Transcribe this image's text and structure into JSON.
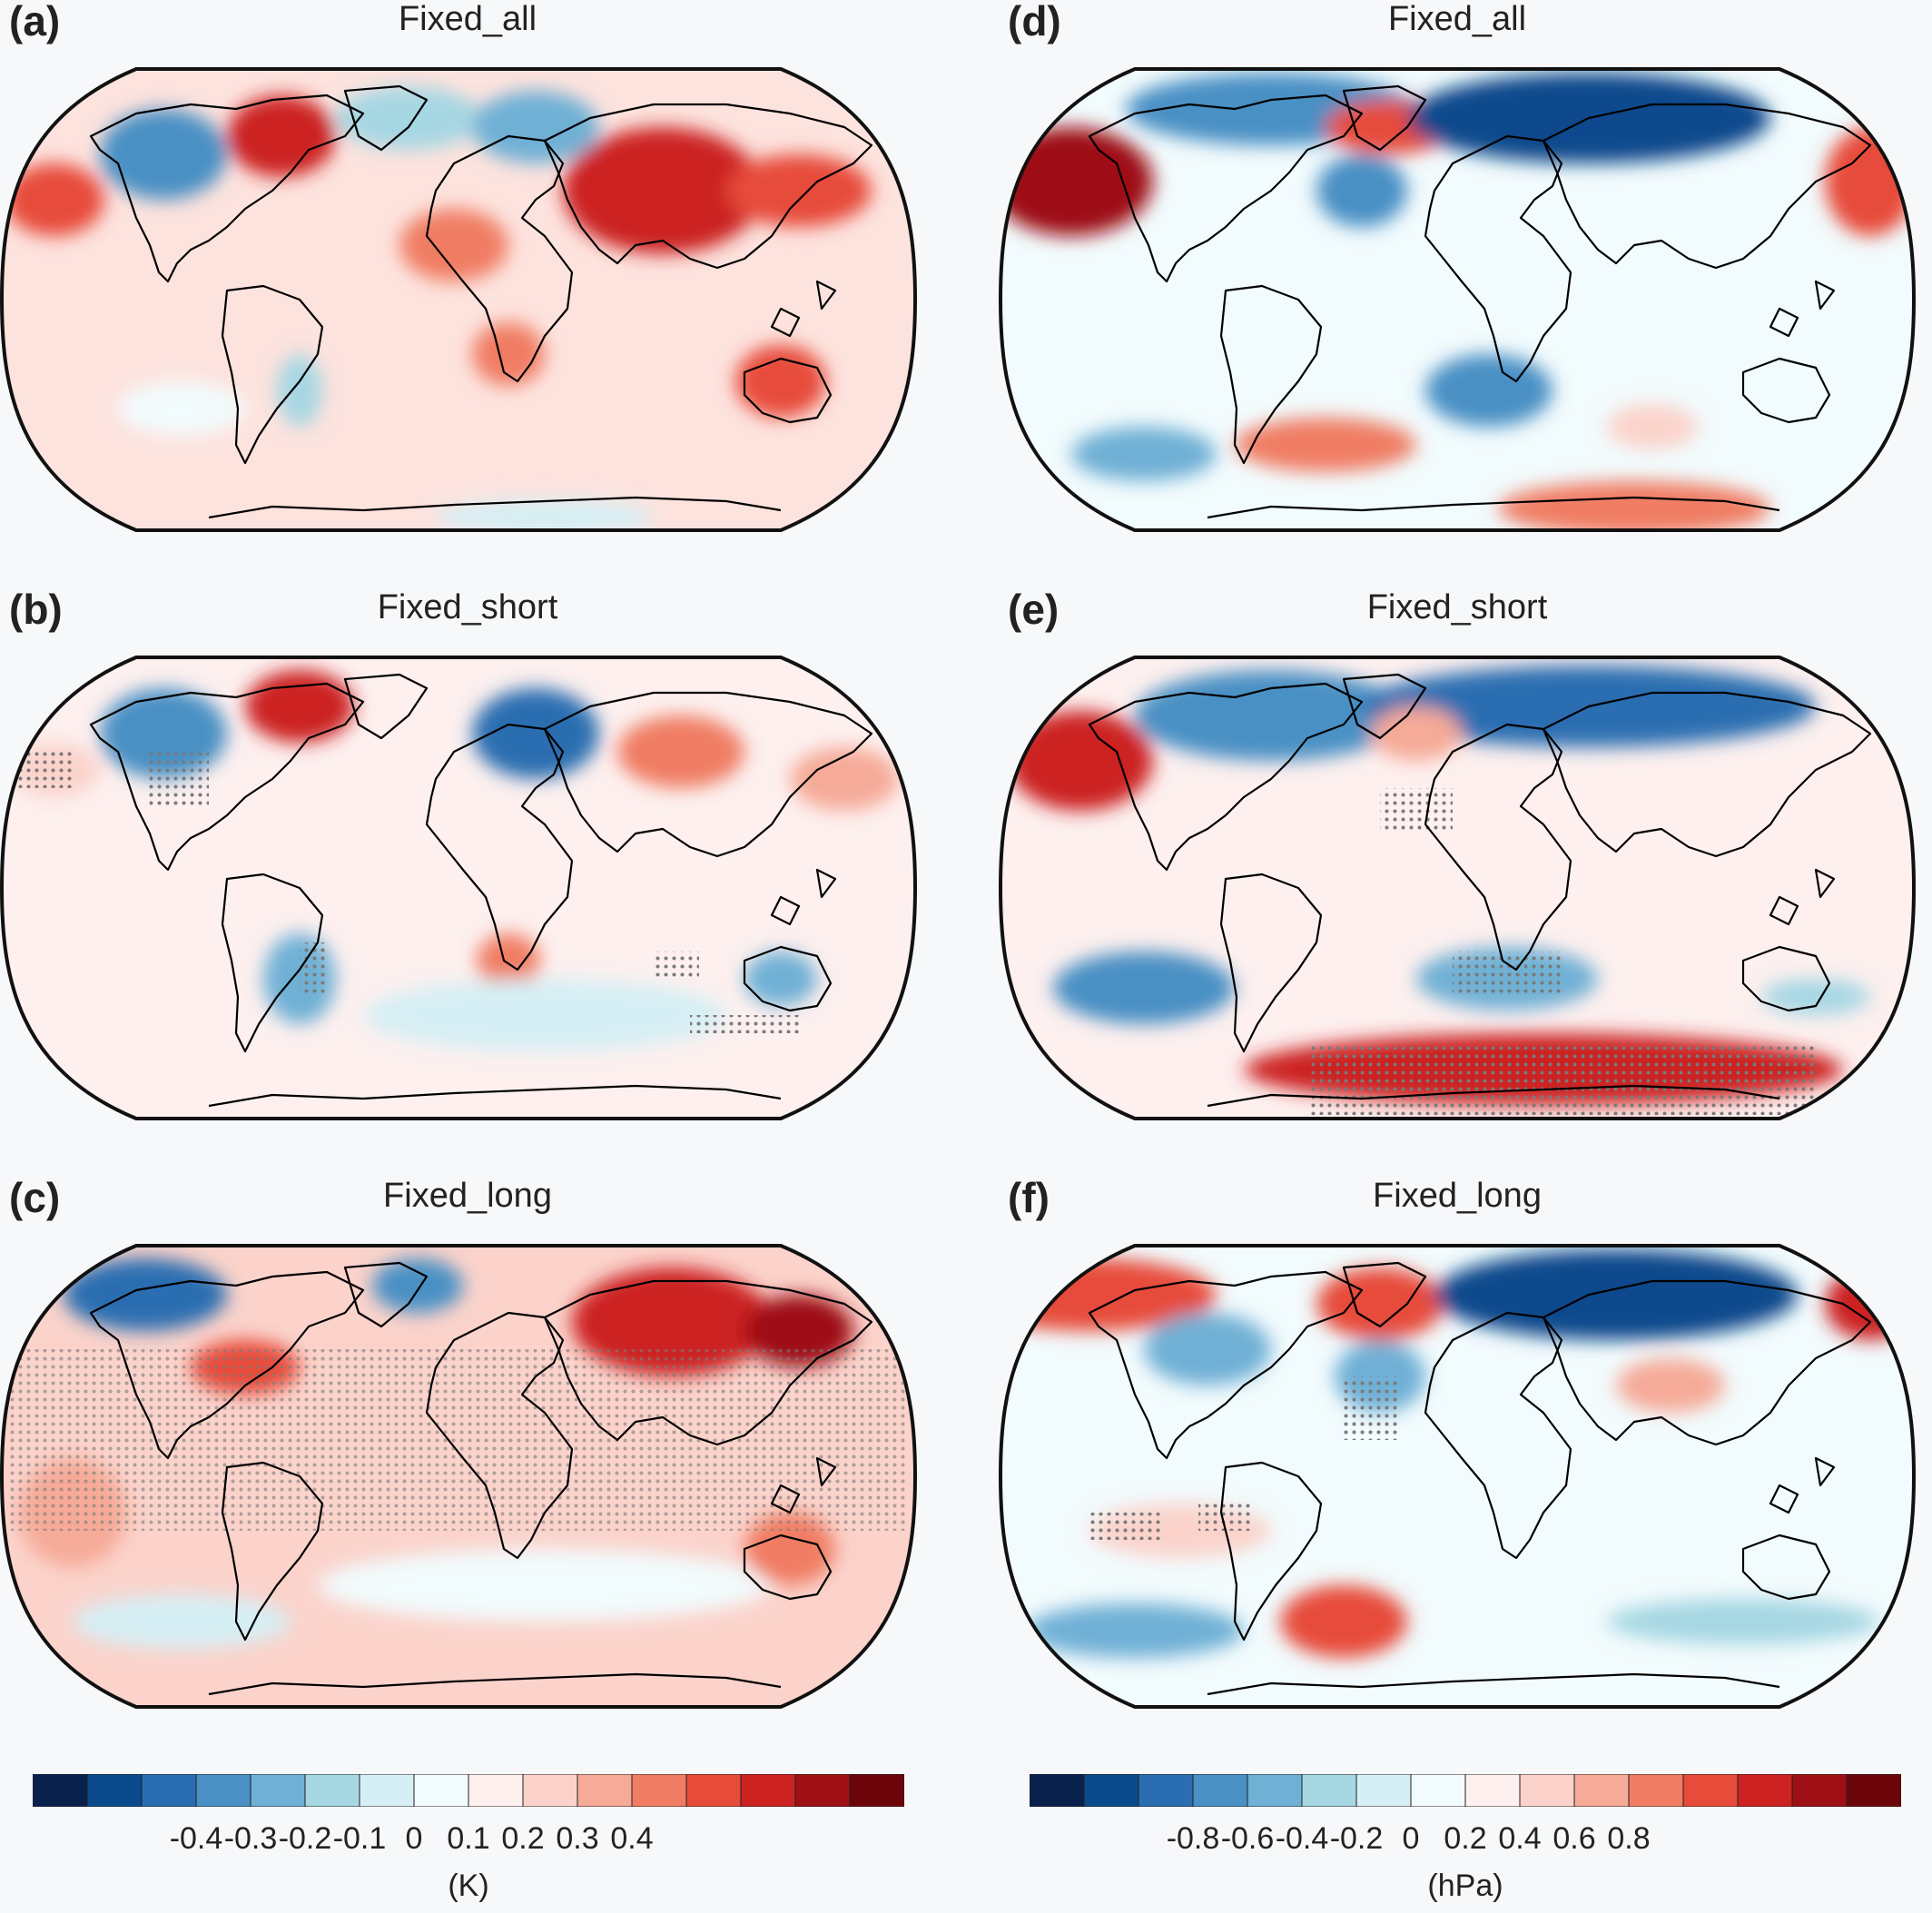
{
  "panels": [
    {
      "letter": "(a)",
      "title": "Fixed_all"
    },
    {
      "letter": "(b)",
      "title": "Fixed_short"
    },
    {
      "letter": "(c)",
      "title": "Fixed_long"
    },
    {
      "letter": "(d)",
      "title": "Fixed_all"
    },
    {
      "letter": "(e)",
      "title": "Fixed_short"
    },
    {
      "letter": "(f)",
      "title": "Fixed_long"
    }
  ],
  "colorbars": [
    {
      "unit": "(K)",
      "ticks": [
        "-0.4",
        "-0.3",
        "-0.2",
        "-0.1",
        "0",
        "0.1",
        "0.2",
        "0.3",
        "0.4"
      ]
    },
    {
      "unit": "(hPa)",
      "ticks": [
        "-0.8",
        "-0.6",
        "-0.4",
        "-0.2",
        "0",
        "0.2",
        "0.4",
        "0.6",
        "0.8"
      ]
    }
  ],
  "palette": [
    "#08214d",
    "#0b4a8c",
    "#2a6eb1",
    "#4a90c4",
    "#6fb0d5",
    "#a6d7e3",
    "#d6eff5",
    "#f2fbfd",
    "#fdf0ef",
    "#fbd3cb",
    "#f6aa98",
    "#f07d63",
    "#e74b3a",
    "#cc2222",
    "#9e1015",
    "#6b0509"
  ]
}
